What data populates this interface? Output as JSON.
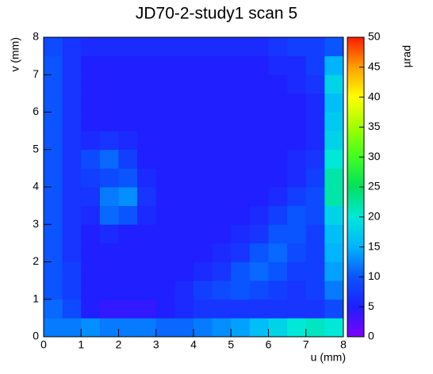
{
  "chart_data": {
    "type": "heatmap",
    "title": "JD70-2-study1 scan 5",
    "x_label": "u (mm)",
    "y_label": "v (mm)",
    "z_label": "µrad",
    "xbins": [
      0,
      0.5,
      1,
      1.5,
      2,
      2.5,
      3,
      3.5,
      4,
      4.5,
      5,
      5.5,
      6,
      6.5,
      7,
      7.5,
      8
    ],
    "ybins": [
      0,
      0.5,
      1,
      1.5,
      2,
      2.5,
      3,
      3.5,
      4,
      4.5,
      5,
      5.5,
      6,
      6.5,
      7,
      7.5,
      8
    ],
    "z": [
      [
        12,
        12,
        13,
        12,
        12,
        12,
        11,
        11,
        12,
        13,
        14,
        16,
        18,
        20,
        21,
        20
      ],
      [
        11,
        9,
        5,
        4,
        4,
        4,
        5,
        6,
        7,
        7,
        7,
        7,
        7,
        7,
        7,
        9
      ],
      [
        10,
        8,
        5,
        5,
        5,
        5,
        5,
        6,
        8,
        9,
        10,
        9,
        8,
        7,
        8,
        12
      ],
      [
        10,
        8,
        5,
        5,
        5,
        5,
        5,
        5,
        6,
        7,
        10,
        11,
        10,
        8,
        8,
        14
      ],
      [
        10,
        7,
        5,
        5,
        5,
        5,
        5,
        5,
        5,
        6,
        7,
        10,
        11,
        9,
        8,
        15
      ],
      [
        10,
        7,
        5,
        6,
        5,
        5,
        5,
        5,
        5,
        5,
        6,
        7,
        10,
        10,
        8,
        16
      ],
      [
        10,
        7,
        6,
        11,
        10,
        6,
        5,
        5,
        5,
        5,
        5,
        6,
        8,
        10,
        9,
        18
      ],
      [
        10,
        7,
        7,
        12,
        13,
        7,
        5,
        5,
        5,
        5,
        5,
        5,
        6,
        8,
        9,
        22
      ],
      [
        10,
        7,
        8,
        9,
        10,
        6,
        5,
        5,
        5,
        5,
        5,
        5,
        5,
        6,
        8,
        22
      ],
      [
        10,
        7,
        9,
        11,
        8,
        5,
        5,
        5,
        5,
        5,
        5,
        5,
        5,
        6,
        7,
        20
      ],
      [
        10,
        7,
        6,
        7,
        6,
        5,
        5,
        5,
        5,
        5,
        5,
        5,
        5,
        5,
        6,
        18
      ],
      [
        10,
        7,
        5,
        5,
        5,
        5,
        5,
        5,
        5,
        5,
        5,
        5,
        5,
        5,
        6,
        17
      ],
      [
        10,
        7,
        5,
        5,
        5,
        5,
        5,
        5,
        5,
        5,
        5,
        5,
        5,
        5,
        6,
        16
      ],
      [
        10,
        7,
        5,
        5,
        5,
        5,
        5,
        5,
        5,
        5,
        5,
        5,
        5,
        6,
        7,
        18
      ],
      [
        10,
        7,
        5,
        5,
        5,
        5,
        5,
        5,
        5,
        5,
        5,
        5,
        6,
        6,
        8,
        15
      ],
      [
        9,
        7,
        6,
        6,
        6,
        6,
        6,
        6,
        6,
        6,
        6,
        6,
        7,
        8,
        8,
        10
      ]
    ],
    "xlim": [
      0,
      8
    ],
    "ylim": [
      0,
      8
    ],
    "zlim": [
      0,
      50
    ],
    "xticks": [
      0,
      1,
      2,
      3,
      4,
      5,
      6,
      7,
      8
    ],
    "yticks": [
      0,
      1,
      2,
      3,
      4,
      5,
      6,
      7,
      8
    ],
    "zticks": [
      0,
      5,
      10,
      15,
      20,
      25,
      30,
      35,
      40,
      45,
      50
    ],
    "colorscale": [
      "#7f00ff",
      "#1f1fff",
      "#0a55ff",
      "#00b4ff",
      "#00e8d8",
      "#00e060",
      "#40ff20",
      "#a0ff00",
      "#ffff00",
      "#ffa000",
      "#ff1a00"
    ]
  }
}
